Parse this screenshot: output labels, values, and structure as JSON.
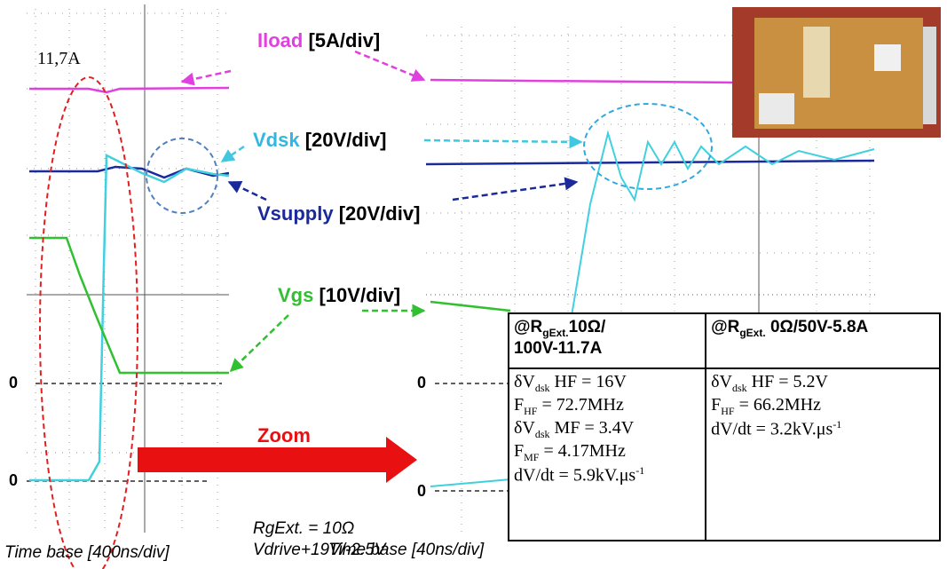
{
  "labels": {
    "peak": "11,7A",
    "iload": {
      "name": "Iload",
      "scale": "[5A/div]"
    },
    "vdsk": {
      "name": "Vdsk",
      "scale": "[20V/div]"
    },
    "vsupply": {
      "name": "Vsupply",
      "scale": "[20V/div]"
    },
    "vgs": {
      "name": "Vgs",
      "scale": "[10V/div]"
    },
    "zero_left_top": "0",
    "zero_left_bottom": "0",
    "zero_right_top": "0",
    "zero_right_bottom": "0",
    "zoom": "Zoom",
    "timebase_left": "Time base [400ns/div]",
    "rgext": "RgExt. = 10Ω",
    "vdrive": "Vdrive+19V/-2.5V",
    "timebase_right": "Time base [40ns/div]"
  },
  "table": {
    "headers": [
      [
        {
          "text": "@R"
        },
        {
          "text": "gExt.",
          "style": "sub"
        },
        {
          "text": "10Ω/"
        },
        {
          "text": "100V-11.7A",
          "style": "br"
        }
      ],
      [
        {
          "text": "@R"
        },
        {
          "text": "gExt.",
          "style": "sub"
        },
        {
          "text": " 0Ω/50V-5.8A"
        }
      ]
    ],
    "columns": [
      [
        [
          {
            "text": "δV"
          },
          {
            "text": "dsk",
            "style": "sub"
          },
          {
            "text": " HF = 16V"
          }
        ],
        [
          {
            "text": "F"
          },
          {
            "text": "HF",
            "style": "sub"
          },
          {
            "text": " = 72.7MHz"
          }
        ],
        [
          {
            "text": "δV"
          },
          {
            "text": "dsk",
            "style": "sub"
          },
          {
            "text": " MF = 3.4V"
          }
        ],
        [
          {
            "text": "F"
          },
          {
            "text": "MF",
            "style": "sub"
          },
          {
            "text": " = 4.17MHz"
          }
        ],
        [
          {
            "text": "dV/dt = 5.9kV.μs"
          },
          {
            "text": "-1",
            "style": "sup"
          }
        ]
      ],
      [
        [
          {
            "text": "δV"
          },
          {
            "text": "dsk",
            "style": "sub"
          },
          {
            "text": " HF = 5.2V"
          }
        ],
        [
          {
            "text": "F"
          },
          {
            "text": "HF",
            "style": "sub"
          },
          {
            "text": " = 66.2MHz"
          }
        ],
        [
          {
            "text": "dV/dt = 3.2kV.μs"
          },
          {
            "text": "-1",
            "style": "sup"
          }
        ]
      ]
    ]
  }
}
